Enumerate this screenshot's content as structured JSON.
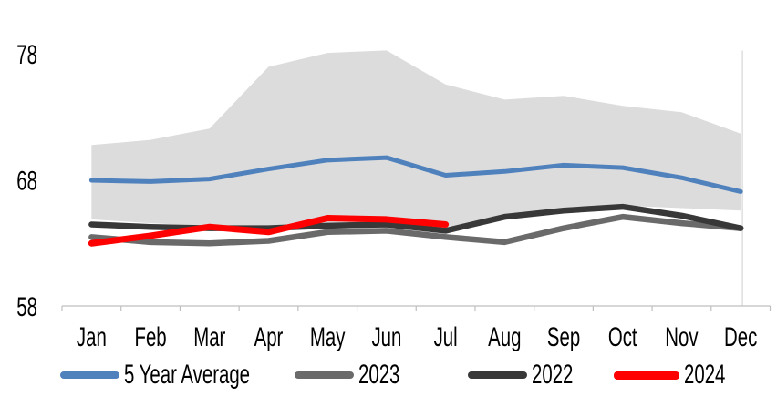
{
  "chart_data": {
    "type": "line",
    "title": "",
    "categories": [
      "Jan",
      "Feb",
      "Mar",
      "Apr",
      "May",
      "Jun",
      "Jul",
      "Aug",
      "Sep",
      "Oct",
      "Nov",
      "Dec"
    ],
    "ylim": [
      58,
      78
    ],
    "yticks": [
      58,
      68,
      78
    ],
    "grid": "off",
    "legend_position": "bottom",
    "band": {
      "color": "#dcdcdc",
      "upper": [
        70.8,
        71.2,
        72.1,
        77.0,
        78.1,
        78.3,
        75.6,
        74.4,
        74.7,
        73.9,
        73.4,
        71.7
      ],
      "lower": [
        64.9,
        64.6,
        64.4,
        64.2,
        64.6,
        64.7,
        64.1,
        65.0,
        65.6,
        66.0,
        65.8,
        65.6
      ]
    },
    "series": [
      {
        "name": "5 Year Average",
        "color": "#4f81bd",
        "width": 5,
        "values": [
          68.0,
          67.9,
          68.1,
          68.9,
          69.6,
          69.8,
          68.4,
          68.7,
          69.2,
          69.0,
          68.2,
          67.1
        ]
      },
      {
        "name": "2023",
        "color": "#6a6a6a",
        "width": 6.5,
        "values": [
          63.5,
          63.1,
          63.0,
          63.2,
          63.9,
          64.0,
          63.5,
          63.1,
          64.2,
          65.1,
          64.6,
          64.2
        ]
      },
      {
        "name": "2022",
        "color": "#383838",
        "width": 6.5,
        "values": [
          64.5,
          64.3,
          64.2,
          64.2,
          64.4,
          64.5,
          64.0,
          65.1,
          65.6,
          65.9,
          65.2,
          64.2
        ]
      },
      {
        "name": "2024",
        "color": "#ff0000",
        "width": 7,
        "values": [
          63.0,
          63.6,
          64.3,
          63.9,
          65.0,
          64.9,
          64.5,
          null,
          null,
          null,
          null,
          null
        ]
      }
    ],
    "axis_color": "#bfbfbf",
    "label_color": "#000000"
  }
}
